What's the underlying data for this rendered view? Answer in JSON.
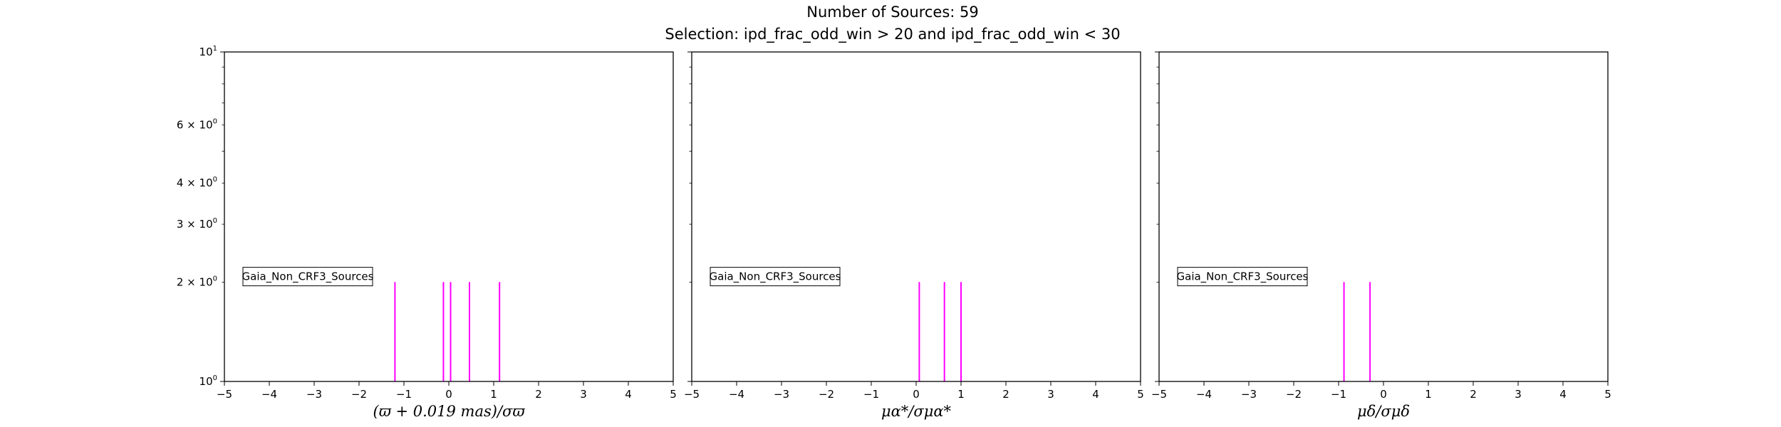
{
  "figure": {
    "title_line1": "Number of Sources: 59",
    "title_line2": "Selection: ipd_frac_odd_win > 20 and ipd_frac_odd_win < 30"
  },
  "colors": {
    "bar": "#ff00ff",
    "axis": "#000000",
    "background": "#ffffff"
  },
  "chart_data": [
    {
      "type": "bar",
      "xlabel": "(ϖ + 0.019 mas)/σϖ",
      "xlim": [
        -5,
        5
      ],
      "ylim": [
        1,
        10
      ],
      "yscale": "log",
      "grid": false,
      "legend": {
        "label": "Gaia_Non_CRF3_Sources",
        "placement": "center-left"
      },
      "bars": [
        {
          "x": -1.2,
          "y": 2
        },
        {
          "x": -0.12,
          "y": 2
        },
        {
          "x": 0.04,
          "y": 2
        },
        {
          "x": 0.46,
          "y": 2
        },
        {
          "x": 1.13,
          "y": 2
        }
      ]
    },
    {
      "type": "bar",
      "xlabel": "μα*/σμα*",
      "xlim": [
        -5,
        5
      ],
      "ylim": [
        1,
        10
      ],
      "yscale": "log",
      "grid": false,
      "legend": {
        "label": "Gaia_Non_CRF3_Sources",
        "placement": "center-left"
      },
      "bars": [
        {
          "x": 0.07,
          "y": 2
        },
        {
          "x": 0.63,
          "y": 2
        },
        {
          "x": 1.0,
          "y": 2
        }
      ]
    },
    {
      "type": "bar",
      "xlabel": "μδ/σμδ",
      "xlim": [
        -5,
        5
      ],
      "ylim": [
        1,
        10
      ],
      "yscale": "log",
      "grid": false,
      "legend": {
        "label": "Gaia_Non_CRF3_Sources",
        "placement": "center-left"
      },
      "bars": [
        {
          "x": -0.88,
          "y": 2
        },
        {
          "x": -0.3,
          "y": 2
        }
      ]
    }
  ],
  "axes": {
    "xticks": [
      "−5",
      "−4",
      "−3",
      "−2",
      "−1",
      "0",
      "1",
      "2",
      "3",
      "4",
      "5"
    ],
    "yticks": [
      {
        "value": 10,
        "mant": "",
        "base": "10",
        "exp": "1"
      },
      {
        "value": 6,
        "mant": "6 × ",
        "base": "10",
        "exp": "0"
      },
      {
        "value": 4,
        "mant": "4 × ",
        "base": "10",
        "exp": "0"
      },
      {
        "value": 3,
        "mant": "3 × ",
        "base": "10",
        "exp": "0"
      },
      {
        "value": 2,
        "mant": "2 × ",
        "base": "10",
        "exp": "0"
      },
      {
        "value": 1,
        "mant": "",
        "base": "10",
        "exp": "0"
      }
    ]
  }
}
